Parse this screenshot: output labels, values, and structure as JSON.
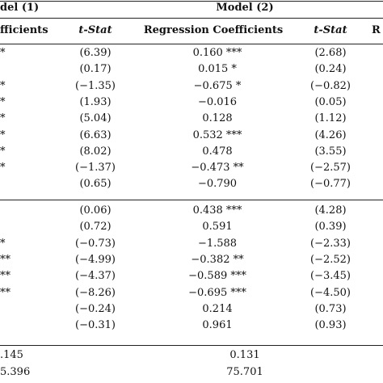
{
  "header": {
    "model1_title": "del (1)",
    "model2_title": "Model (2)",
    "col_coeff_1": "fficients",
    "col_tstat_1": "t-Stat",
    "col_coeff_2": "Regression Coefficients",
    "col_tstat_2": "t-Stat",
    "col_extra": "R"
  },
  "rows_top": [
    {
      "m1_coef": "*",
      "m1_t": "(6.39)",
      "m2_coef": "0.160 ***",
      "m2_t": "(2.68)"
    },
    {
      "m1_coef": "",
      "m1_t": "(0.17)",
      "m2_coef": "0.015 *",
      "m2_t": "(0.24)"
    },
    {
      "m1_coef": "*",
      "m1_t": "(−1.35)",
      "m2_coef": "−0.675 *",
      "m2_t": "(−0.82)"
    },
    {
      "m1_coef": "*",
      "m1_t": "(1.93)",
      "m2_coef": "−0.016",
      "m2_t": "(0.05)"
    },
    {
      "m1_coef": "*",
      "m1_t": "(5.04)",
      "m2_coef": "0.128",
      "m2_t": "(1.12)"
    },
    {
      "m1_coef": "*",
      "m1_t": "(6.63)",
      "m2_coef": "0.532 ***",
      "m2_t": "(4.26)"
    },
    {
      "m1_coef": "*",
      "m1_t": "(8.02)",
      "m2_coef": "0.478",
      "m2_t": "(3.55)"
    },
    {
      "m1_coef": "*",
      "m1_t": "(−1.37)",
      "m2_coef": "−0.473 **",
      "m2_t": "(−2.57)"
    },
    {
      "m1_coef": "",
      "m1_t": "(0.65)",
      "m2_coef": "−0.790",
      "m2_t": "(−0.77)"
    }
  ],
  "rows_bottom": [
    {
      "m1_coef": "",
      "m1_t": "(0.06)",
      "m2_coef": "0.438 ***",
      "m2_t": "(4.28)"
    },
    {
      "m1_coef": "",
      "m1_t": "(0.72)",
      "m2_coef": "0.591",
      "m2_t": "(0.39)"
    },
    {
      "m1_coef": "*",
      "m1_t": "(−0.73)",
      "m2_coef": "−1.588",
      "m2_t": "(−2.33)"
    },
    {
      "m1_coef": "**",
      "m1_t": "(−4.99)",
      "m2_coef": "−0.382 **",
      "m2_t": "(−2.52)"
    },
    {
      "m1_coef": "**",
      "m1_t": "(−4.37)",
      "m2_coef": "−0.589 ***",
      "m2_t": "(−3.45)"
    },
    {
      "m1_coef": "**",
      "m1_t": "(−8.26)",
      "m2_coef": "−0.695 ***",
      "m2_t": "(−4.50)"
    },
    {
      "m1_coef": "",
      "m1_t": "(−0.24)",
      "m2_coef": "0.214",
      "m2_t": "(0.73)"
    },
    {
      "m1_coef": "",
      "m1_t": "(−0.31)",
      "m2_coef": "0.961",
      "m2_t": "(0.93)"
    }
  ],
  "footer": [
    {
      "m1": ".145",
      "m2": "0.131"
    },
    {
      "m1": "5.396",
      "m2": "75.701"
    }
  ]
}
